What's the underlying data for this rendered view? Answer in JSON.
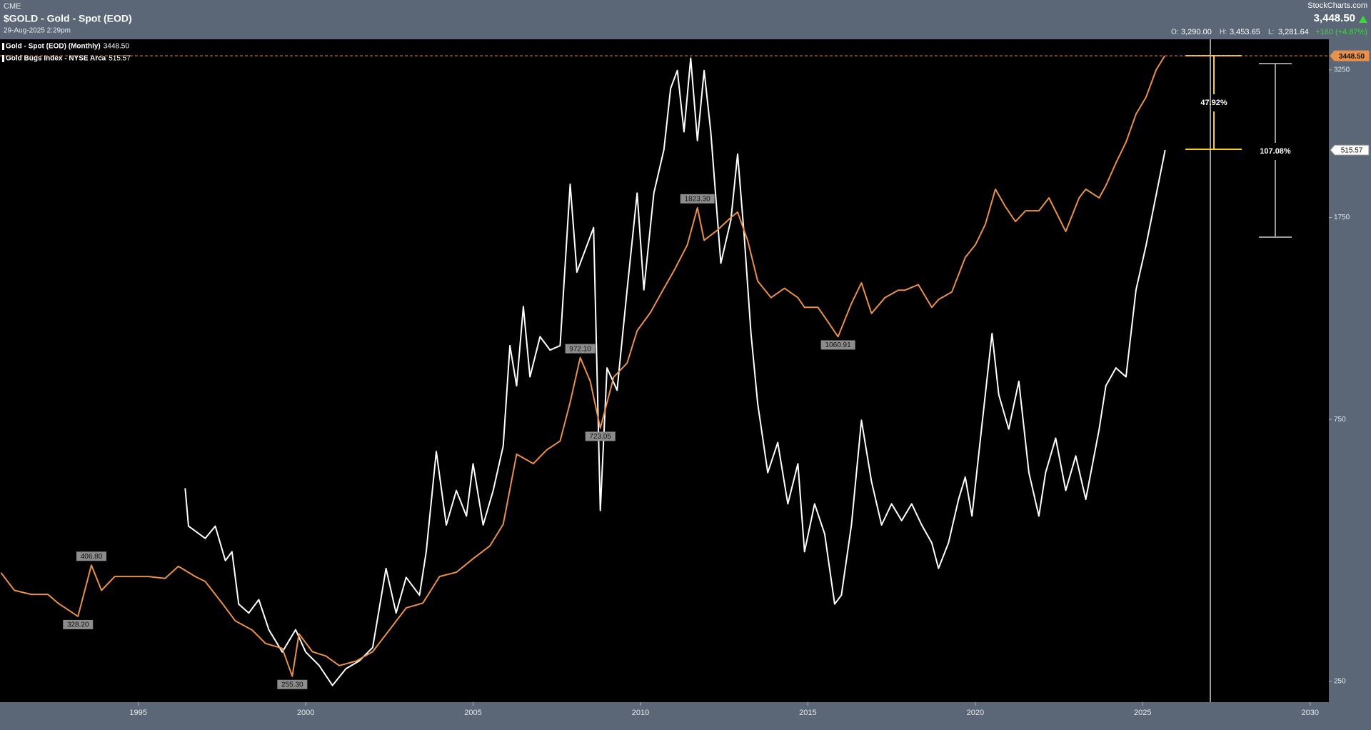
{
  "header": {
    "exchange": "CME",
    "title": "$GOLD - Gold - Spot (EOD)",
    "date": "29-Aug-2025 2:29pm",
    "brand": "StockCharts.com",
    "price": "3,448.50",
    "quote": [
      {
        "label": "O:",
        "value": "3,290.00"
      },
      {
        "label": "H:",
        "value": "3,453.65"
      },
      {
        "label": "L:",
        "value": "3,281.64"
      }
    ],
    "change": "+160 (+4.87%)"
  },
  "chart_data": {
    "type": "line",
    "log_scale": true,
    "grid": false,
    "xlim": [
      1990.87,
      2030.56
    ],
    "xticks": [
      1995,
      2000,
      2005,
      2010,
      2015,
      2020,
      2025,
      2030
    ],
    "ylim": [
      229,
      3696
    ],
    "yticks": [
      250,
      750,
      1750,
      3250
    ],
    "y2lim": [
      20,
      615
    ],
    "series": [
      {
        "name": "Gold - Spot (EOD) (Monthly)",
        "last_label": "3448.50",
        "color": "#e8914a",
        "x": [
          1990.9,
          1991.3,
          1991.8,
          1992.3,
          1992.6,
          1993.2,
          1993.6,
          1993.9,
          1994.3,
          1994.8,
          1995.3,
          1995.8,
          1996.2,
          1996.7,
          1997.0,
          1997.5,
          1997.9,
          1998.4,
          1998.8,
          1999.3,
          1999.6,
          1999.8,
          2000.2,
          2000.6,
          2001.0,
          2001.5,
          2002.0,
          2002.5,
          2003.0,
          2003.5,
          2004.0,
          2004.5,
          2005.0,
          2005.5,
          2005.9,
          2006.3,
          2006.8,
          2007.2,
          2007.6,
          2007.9,
          2008.2,
          2008.5,
          2008.8,
          2009.2,
          2009.6,
          2009.9,
          2010.3,
          2010.7,
          2011.0,
          2011.4,
          2011.7,
          2011.9,
          2012.3,
          2012.7,
          2012.9,
          2013.2,
          2013.5,
          2013.9,
          2014.3,
          2014.7,
          2014.9,
          2015.3,
          2015.6,
          2015.9,
          2016.3,
          2016.6,
          2016.9,
          2017.3,
          2017.7,
          2017.9,
          2018.3,
          2018.7,
          2018.9,
          2019.3,
          2019.7,
          2020.0,
          2020.3,
          2020.6,
          2020.9,
          2021.2,
          2021.5,
          2021.9,
          2022.2,
          2022.7,
          2023.1,
          2023.3,
          2023.7,
          2023.9,
          2024.2,
          2024.5,
          2024.8,
          2025.1,
          2025.4,
          2025.66
        ],
        "values": [
          394,
          366,
          360,
          360,
          347,
          328.2,
          406.8,
          366,
          388,
          388,
          388,
          385,
          405,
          388,
          380,
          347,
          322,
          310,
          293,
          287,
          255.3,
          305,
          283,
          278,
          267,
          272,
          283,
          310,
          340,
          347,
          388,
          395,
          418,
          441,
          483,
          648,
          623,
          660,
          685,
          806,
          972.1,
          880,
          723.05,
          896,
          950,
          1088,
          1175,
          1300,
          1400,
          1560,
          1823.3,
          1590,
          1660,
          1750,
          1790,
          1590,
          1340,
          1250,
          1300,
          1250,
          1200,
          1200,
          1130,
          1060.91,
          1220,
          1330,
          1170,
          1250,
          1290,
          1290,
          1320,
          1200,
          1240,
          1280,
          1480,
          1560,
          1700,
          1970,
          1830,
          1720,
          1800,
          1800,
          1900,
          1650,
          1900,
          1970,
          1900,
          2000,
          2200,
          2400,
          2700,
          2900,
          3250,
          3448.5
        ]
      },
      {
        "name": "Gold Bugs Index - NYSE Arca",
        "last_label": "515.57",
        "color": "#ffffff",
        "axis": "y2",
        "x": [
          1996.4,
          1996.5,
          1997.0,
          1997.3,
          1997.6,
          1997.8,
          1998.0,
          1998.3,
          1998.6,
          1998.9,
          1999.3,
          1999.7,
          2000.0,
          2000.4,
          2000.8,
          2001.2,
          2001.6,
          2002.0,
          2002.4,
          2002.7,
          2003.0,
          2003.4,
          2003.6,
          2003.9,
          2004.2,
          2004.5,
          2004.8,
          2005.0,
          2005.3,
          2005.6,
          2005.9,
          2006.1,
          2006.3,
          2006.5,
          2006.7,
          2007.0,
          2007.3,
          2007.6,
          2007.9,
          2008.1,
          2008.3,
          2008.6,
          2008.8,
          2009.0,
          2009.3,
          2009.6,
          2009.9,
          2010.1,
          2010.4,
          2010.7,
          2010.9,
          2011.1,
          2011.3,
          2011.5,
          2011.7,
          2011.9,
          2012.1,
          2012.4,
          2012.7,
          2012.9,
          2013.1,
          2013.3,
          2013.5,
          2013.8,
          2014.1,
          2014.4,
          2014.7,
          2014.9,
          2015.2,
          2015.5,
          2015.8,
          2016.0,
          2016.3,
          2016.6,
          2016.9,
          2017.2,
          2017.5,
          2017.8,
          2018.1,
          2018.4,
          2018.7,
          2018.9,
          2019.2,
          2019.5,
          2019.7,
          2019.9,
          2020.2,
          2020.5,
          2020.7,
          2021.0,
          2021.3,
          2021.6,
          2021.9,
          2022.1,
          2022.4,
          2022.7,
          2023.0,
          2023.3,
          2023.7,
          2023.9,
          2024.2,
          2024.5,
          2024.8,
          2025.1,
          2025.67
        ],
        "values": [
          212,
          178,
          167,
          178,
          147,
          155,
          108,
          100,
          112,
          85,
          65,
          85,
          65,
          53,
          35,
          50,
          57,
          69,
          140,
          100,
          132,
          116,
          155,
          245,
          179,
          210,
          187,
          234,
          179,
          210,
          250,
          340,
          304,
          375,
          312,
          348,
          336,
          340,
          485,
          406,
          422,
          446,
          192,
          320,
          300,
          390,
          477,
          390,
          477,
          516,
          571,
          587,
          532,
          598,
          524,
          587,
          532,
          414,
          453,
          512,
          438,
          351,
          288,
          226,
          253,
          198,
          234,
          155,
          198,
          171,
          108,
          116,
          179,
          273,
          218,
          179,
          198,
          183,
          198,
          179,
          163,
          140,
          163,
          202,
          222,
          187,
          269,
          351,
          296,
          265,
          308,
          226,
          187,
          226,
          257,
          210,
          241,
          202,
          265,
          304,
          320,
          312,
          390,
          430,
          515.57
        ]
      }
    ],
    "annotations": [
      {
        "label": "406.80",
        "x": 1993.6,
        "y": 406.8
      },
      {
        "label": "328.20",
        "x": 1993.2,
        "y": 328.2
      },
      {
        "label": "255.30",
        "x": 1999.6,
        "y": 255.3
      },
      {
        "label": "972.10",
        "x": 2008.2,
        "y": 972.1
      },
      {
        "label": "723.05",
        "x": 2008.8,
        "y": 723.05
      },
      {
        "label": "1823.30",
        "x": 2011.7,
        "y": 1823.3
      },
      {
        "label": "1060.91",
        "x": 2015.9,
        "y": 1060.91
      }
    ],
    "measurements": [
      {
        "label": "47.92%"
      },
      {
        "label": "107.08%"
      }
    ]
  }
}
